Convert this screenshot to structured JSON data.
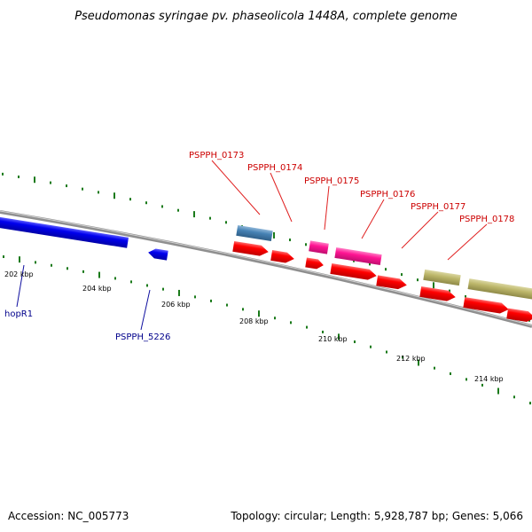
{
  "title": "Pseudomonas syringae pv. phaseolicola 1448A, complete genome",
  "footer": {
    "accession": "Accession: NC_005773",
    "summary": "Topology: circular; Length: 5,928,787 bp; Genes: 5,066"
  },
  "colors": {
    "backbone": "#8f8f8f",
    "tick": "#1a7a1a",
    "reverse_label": "#00008b",
    "forward_label": "#cc0000",
    "cds_red": "#ff0000",
    "cds_blue": "#0000ee",
    "steel": "#4682b4",
    "magenta": "#ff1493",
    "khaki": "#bdb76b"
  },
  "scale": {
    "labels": [
      "202 kbp",
      "204 kbp",
      "206 kbp",
      "208 kbp",
      "210 kbp",
      "212 kbp",
      "214 kbp"
    ]
  },
  "genes": {
    "top_labels": [
      "PSPPH_0173",
      "PSPPH_0174",
      "PSPPH_0175",
      "PSPPH_0176",
      "PSPPH_0177",
      "PSPPH_0178"
    ],
    "bottom_labels": [
      "hopR1",
      "PSPPH_5226"
    ]
  }
}
